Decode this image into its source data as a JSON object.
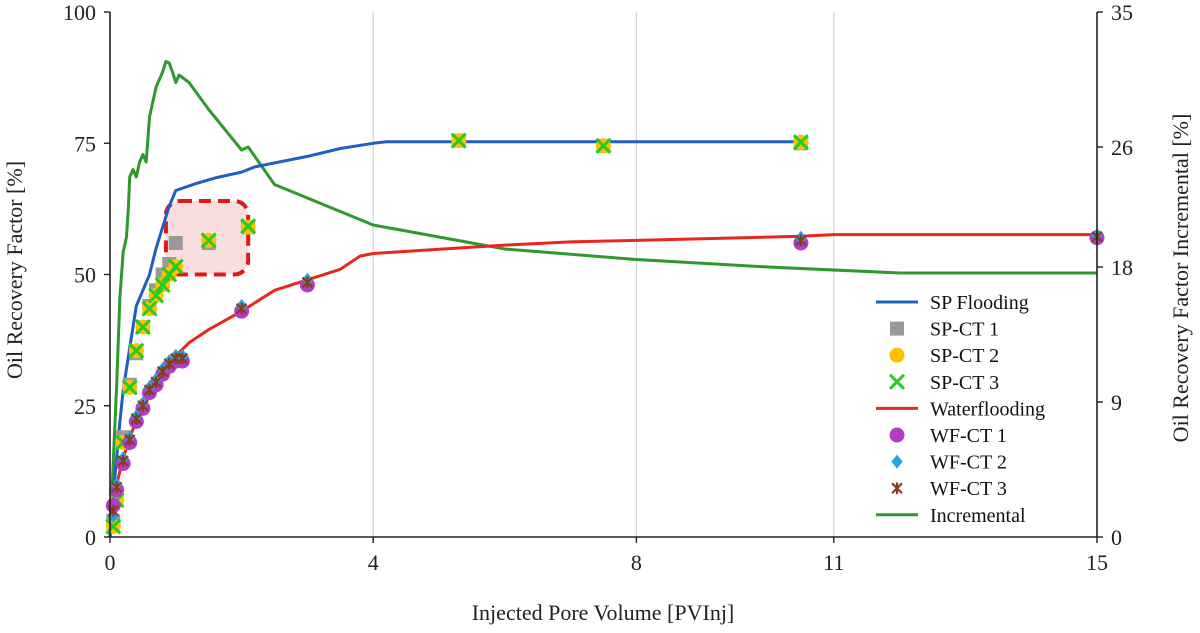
{
  "chart_data": {
    "type": "line",
    "xlabel": "Injected Pore Volume [PVInj]",
    "ylabel": "Oil Recovery Factor [%]",
    "y2label": "Oil Recovery Factor Incremental [%]",
    "xlim": [
      0,
      15
    ],
    "ylim": [
      0,
      100
    ],
    "y2lim": [
      0,
      35
    ],
    "x_ticks": [
      0,
      4,
      8,
      11,
      15
    ],
    "y_ticks": [
      0,
      25,
      50,
      75,
      100
    ],
    "y2_ticks": [
      0,
      9,
      18,
      26,
      35
    ],
    "grid": "vertical",
    "legend_position": "bottom-right",
    "highlight_box": {
      "x": [
        0.85,
        2.1
      ],
      "y": [
        50,
        64
      ]
    },
    "series": [
      {
        "name": "SP Flooding",
        "kind": "line",
        "axis": "left",
        "color": "#1f5fbf",
        "x": [
          0,
          0.05,
          0.1,
          0.15,
          0.2,
          0.3,
          0.4,
          0.5,
          0.6,
          0.7,
          0.8,
          0.9,
          1.0,
          1.3,
          1.6,
          2.0,
          2.2,
          2.6,
          3.0,
          3.5,
          4.0,
          4.2,
          6,
          8,
          10.5
        ],
        "y": [
          0,
          8,
          15,
          22,
          28,
          36,
          44,
          47,
          50,
          55,
          59,
          63,
          66,
          67.3,
          68.4,
          69.5,
          70.5,
          71.5,
          72.5,
          74,
          75,
          75.3,
          75.3,
          75.3,
          75.3
        ]
      },
      {
        "name": "SP-CT 1",
        "kind": "marker",
        "marker": "square",
        "axis": "left",
        "color": "#9a9a9a",
        "x": [
          0.05,
          0.1,
          0.2,
          0.3,
          0.4,
          0.5,
          0.6,
          0.7,
          0.8,
          0.9,
          1.0,
          1.5,
          2.1,
          5.3,
          7.5,
          10.5
        ],
        "y": [
          3,
          8,
          19,
          29,
          35,
          40,
          44,
          47,
          50,
          52,
          56,
          56,
          59,
          75.5,
          74.5,
          75
        ]
      },
      {
        "name": "SP-CT 2",
        "kind": "marker",
        "marker": "circle",
        "axis": "left",
        "color": "#ffc000",
        "x": [
          0.05,
          0.1,
          0.2,
          0.3,
          0.4,
          0.5,
          0.6,
          0.7,
          0.8,
          0.9,
          1.0,
          1.5,
          2.1,
          5.3,
          7.5,
          10.5
        ],
        "y": [
          2,
          7,
          18,
          28.5,
          35.5,
          40,
          43.5,
          46,
          48,
          50,
          51.5,
          56.5,
          59,
          75.5,
          74.5,
          75.2
        ]
      },
      {
        "name": "SP-CT 3",
        "kind": "marker",
        "marker": "x",
        "axis": "left",
        "color": "#22cc22",
        "x": [
          0.05,
          0.1,
          0.2,
          0.3,
          0.4,
          0.5,
          0.6,
          0.7,
          0.8,
          0.9,
          1.0,
          1.5,
          2.1,
          5.3,
          7.5,
          10.5
        ],
        "y": [
          2,
          7,
          18,
          28.5,
          35.5,
          40,
          43.5,
          46,
          48,
          50,
          51.5,
          56.5,
          59.2,
          75.5,
          74.5,
          75.2
        ]
      },
      {
        "name": "Waterflooding",
        "kind": "line",
        "axis": "left",
        "color": "#e8281e",
        "x": [
          0,
          0.05,
          0.1,
          0.2,
          0.3,
          0.4,
          0.5,
          0.6,
          0.7,
          0.8,
          0.9,
          1.0,
          1.2,
          1.5,
          2.0,
          2.5,
          3.0,
          3.5,
          3.8,
          4.0,
          5.0,
          6.0,
          7.0,
          8.0,
          9.0,
          10.5,
          11.0,
          12.0,
          13.0,
          15.0
        ],
        "y": [
          0,
          6,
          10,
          15,
          19,
          22,
          24.5,
          27,
          29,
          31,
          33,
          34.5,
          37,
          39.5,
          43,
          47,
          49,
          51,
          53.5,
          54,
          54.8,
          55.6,
          56.2,
          56.5,
          56.8,
          57.3,
          57.6,
          57.6,
          57.6,
          57.6
        ]
      },
      {
        "name": "WF-CT 1",
        "kind": "marker",
        "marker": "circle",
        "axis": "left",
        "color": "#b03cc8",
        "x": [
          0.05,
          0.1,
          0.2,
          0.3,
          0.4,
          0.5,
          0.6,
          0.7,
          0.8,
          0.9,
          1.0,
          1.1,
          2.0,
          3.0,
          10.5,
          15.0
        ],
        "y": [
          6,
          9,
          14,
          18,
          22,
          24.5,
          27.5,
          29,
          31,
          32.5,
          33.5,
          33.5,
          43,
          48,
          56,
          57
        ]
      },
      {
        "name": "WF-CT 2",
        "kind": "marker",
        "marker": "diamond",
        "axis": "left",
        "color": "#1fa6e8",
        "x": [
          0.05,
          0.1,
          0.2,
          0.3,
          0.4,
          0.5,
          0.6,
          0.7,
          0.8,
          0.9,
          1.0,
          1.1,
          2.0,
          3.0,
          10.5,
          15.0
        ],
        "y": [
          4,
          10,
          15,
          19,
          23,
          25.5,
          28.5,
          30,
          32,
          33.5,
          34.5,
          34.5,
          44,
          49,
          57,
          57.5
        ]
      },
      {
        "name": "WF-CT 3",
        "kind": "marker",
        "marker": "star",
        "axis": "left",
        "color": "#8b3a1a",
        "x": [
          0.05,
          0.1,
          0.2,
          0.3,
          0.4,
          0.5,
          0.6,
          0.7,
          0.8,
          0.9,
          1.0,
          1.1,
          2.0,
          3.0,
          10.5,
          15.0
        ],
        "y": [
          5,
          9.5,
          14.5,
          18.5,
          22.5,
          25,
          28,
          29.5,
          31.5,
          33,
          34,
          34,
          43.5,
          48.5,
          56.5,
          57.2
        ]
      },
      {
        "name": "Incremental",
        "kind": "line",
        "axis": "right",
        "color": "#2e9a2e",
        "x": [
          0,
          0.03,
          0.06,
          0.1,
          0.15,
          0.2,
          0.25,
          0.28,
          0.3,
          0.35,
          0.4,
          0.45,
          0.5,
          0.55,
          0.6,
          0.65,
          0.7,
          0.8,
          0.85,
          0.9,
          0.95,
          1.0,
          1.05,
          1.2,
          1.5,
          2.0,
          2.1,
          2.5,
          4.0,
          6.0,
          8.0,
          10.0,
          12.0,
          15.0
        ],
        "y": [
          0,
          3,
          6,
          10,
          16,
          19,
          20,
          22,
          24,
          24.5,
          24,
          25,
          25.5,
          25,
          28,
          29,
          30,
          31,
          31.7,
          31.6,
          31,
          30.3,
          30.8,
          30.3,
          28.5,
          25.8,
          26,
          23.5,
          20.8,
          19.2,
          18.5,
          18,
          17.6,
          17.6
        ]
      }
    ]
  }
}
